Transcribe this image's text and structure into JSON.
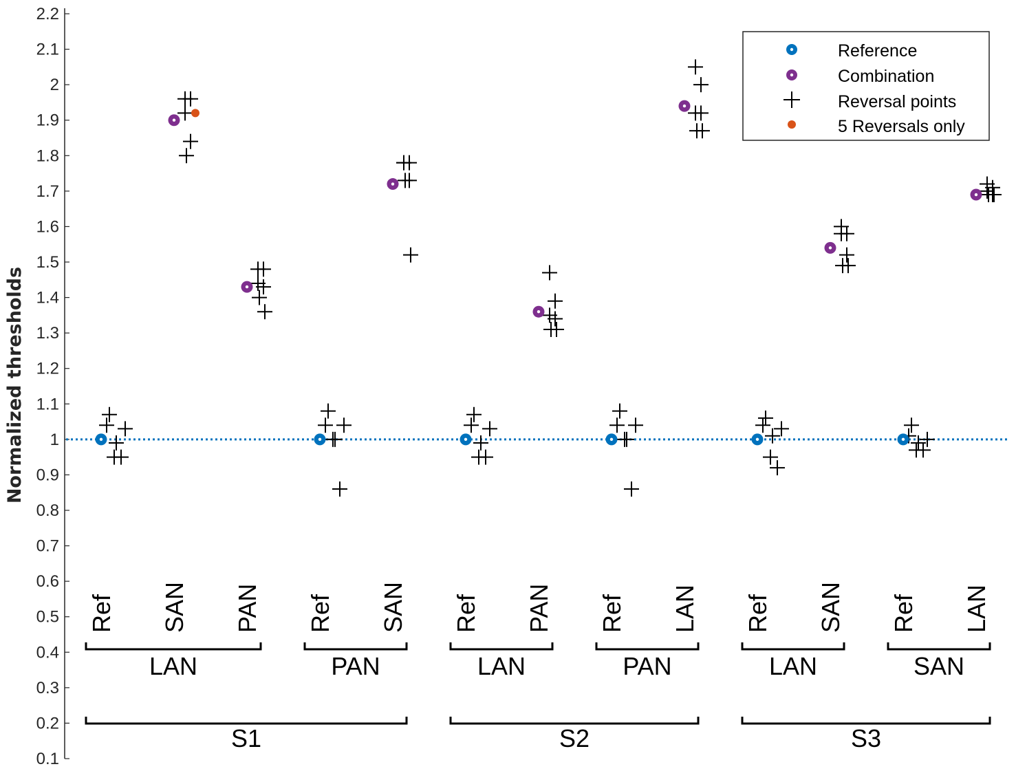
{
  "chart_data": {
    "type": "scatter",
    "title": "",
    "xlabel": "",
    "ylabel": "Normalized thresholds",
    "ylim": [
      0.1,
      2.2
    ],
    "yticks": [
      "0.1",
      "0.2",
      "0.3",
      "0.4",
      "0.5",
      "0.6",
      "0.7",
      "0.8",
      "0.9",
      "1",
      "1.1",
      "1.2",
      "1.3",
      "1.4",
      "1.5",
      "1.6",
      "1.7",
      "1.8",
      "1.9",
      "2",
      "2.1",
      "2.2"
    ],
    "reference_line": 1,
    "colors": {
      "reference": "#0072BD",
      "combination": "#7E2F8E",
      "reversal": "#000000",
      "five_reversals": "#D95319",
      "ref_line": "#0072BD"
    },
    "legend": {
      "position": "top-right",
      "entries": [
        "Reference",
        "Combination",
        "Reversal points",
        "5 Reversals only"
      ]
    },
    "subjects": [
      {
        "name": "S1",
        "groups": [
          {
            "name": "LAN",
            "conditions": [
              "Ref",
              "SAN",
              "PAN"
            ]
          },
          {
            "name": "PAN",
            "conditions": [
              "Ref",
              "SAN"
            ]
          }
        ]
      },
      {
        "name": "S2",
        "groups": [
          {
            "name": "LAN",
            "conditions": [
              "Ref",
              "PAN"
            ]
          },
          {
            "name": "PAN",
            "conditions": [
              "Ref",
              "LAN"
            ]
          }
        ]
      },
      {
        "name": "S3",
        "groups": [
          {
            "name": "LAN",
            "conditions": [
              "Ref",
              "SAN"
            ]
          },
          {
            "name": "SAN",
            "conditions": [
              "Ref",
              "LAN"
            ]
          }
        ]
      }
    ],
    "points": [
      {
        "subject": "S1",
        "group": "LAN",
        "condition": "Ref",
        "kind": "reference",
        "value": 1.0,
        "reversals": [
          1.07,
          1.04,
          1.03,
          0.99,
          0.95,
          0.95
        ]
      },
      {
        "subject": "S1",
        "group": "LAN",
        "condition": "SAN",
        "kind": "combination",
        "value": 1.9,
        "five_reversals": 1.92,
        "reversals": [
          1.96,
          1.96,
          1.92,
          1.84,
          1.8
        ]
      },
      {
        "subject": "S1",
        "group": "LAN",
        "condition": "PAN",
        "kind": "combination",
        "value": 1.43,
        "reversals": [
          1.48,
          1.48,
          1.44,
          1.43,
          1.4,
          1.36
        ]
      },
      {
        "subject": "S1",
        "group": "PAN",
        "condition": "Ref",
        "kind": "reference",
        "value": 1.0,
        "reversals": [
          1.08,
          1.04,
          1.04,
          1.0,
          1.0,
          0.86
        ]
      },
      {
        "subject": "S1",
        "group": "PAN",
        "condition": "SAN",
        "kind": "combination",
        "value": 1.72,
        "reversals": [
          1.78,
          1.78,
          1.78,
          1.73,
          1.73,
          1.52
        ]
      },
      {
        "subject": "S2",
        "group": "LAN",
        "condition": "Ref",
        "kind": "reference",
        "value": 1.0,
        "reversals": [
          1.07,
          1.04,
          1.03,
          0.99,
          0.95,
          0.95
        ]
      },
      {
        "subject": "S2",
        "group": "LAN",
        "condition": "PAN",
        "kind": "combination",
        "value": 1.36,
        "reversals": [
          1.47,
          1.39,
          1.35,
          1.34,
          1.31,
          1.31
        ]
      },
      {
        "subject": "S2",
        "group": "PAN",
        "condition": "Ref",
        "kind": "reference",
        "value": 1.0,
        "reversals": [
          1.08,
          1.04,
          1.04,
          1.0,
          1.0,
          0.86
        ]
      },
      {
        "subject": "S2",
        "group": "PAN",
        "condition": "LAN",
        "kind": "combination",
        "value": 1.94,
        "reversals": [
          2.05,
          2.0,
          1.92,
          1.92,
          1.87,
          1.87
        ]
      },
      {
        "subject": "S3",
        "group": "LAN",
        "condition": "Ref",
        "kind": "reference",
        "value": 1.0,
        "reversals": [
          1.06,
          1.04,
          1.03,
          1.01,
          0.95,
          0.92
        ]
      },
      {
        "subject": "S3",
        "group": "LAN",
        "condition": "SAN",
        "kind": "combination",
        "value": 1.54,
        "reversals": [
          1.6,
          1.58,
          1.58,
          1.52,
          1.49,
          1.49
        ]
      },
      {
        "subject": "S3",
        "group": "SAN",
        "condition": "Ref",
        "kind": "reference",
        "value": 1.0,
        "reversals": [
          1.04,
          1.01,
          1.0,
          0.99,
          0.97,
          0.97
        ]
      },
      {
        "subject": "S3",
        "group": "SAN",
        "condition": "LAN",
        "kind": "combination",
        "value": 1.69,
        "reversals": [
          1.72,
          1.71,
          1.7,
          1.69,
          1.69,
          1.69
        ]
      }
    ]
  }
}
